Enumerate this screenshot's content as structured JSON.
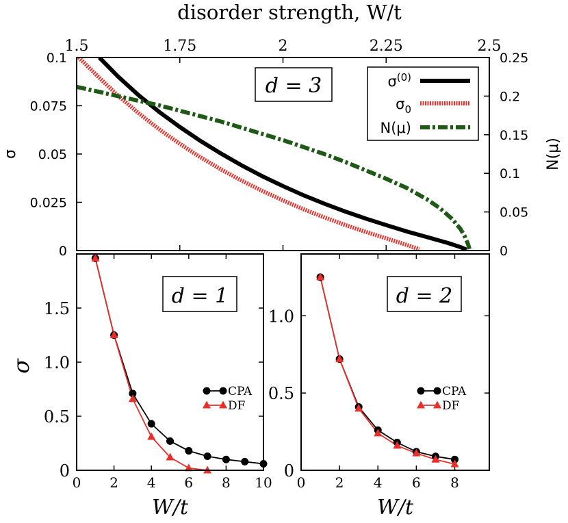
{
  "chart_data": [
    {
      "id": "top",
      "type": "line",
      "title": "",
      "xlabel": "disorder strength, W/t",
      "ylabel": "σ",
      "ylabel_right": "N(μ)",
      "xlim": [
        1.5,
        2.5
      ],
      "ylim": [
        0,
        0.1
      ],
      "ylim_right": [
        0,
        0.25
      ],
      "x_ticks": [
        {
          "v": 1.5,
          "label": "1.5"
        },
        {
          "v": 1.75,
          "label": "1.75"
        },
        {
          "v": 2,
          "label": "2"
        },
        {
          "v": 2.25,
          "label": "2.25"
        },
        {
          "v": 2.5,
          "label": "2.5"
        }
      ],
      "y_ticks": [
        {
          "v": 0,
          "label": "0"
        },
        {
          "v": 0.025,
          "label": "0.025"
        },
        {
          "v": 0.05,
          "label": "0.05"
        },
        {
          "v": 0.075,
          "label": "0.075"
        },
        {
          "v": 0.1,
          "label": "0.1"
        }
      ],
      "y_ticks_right": [
        {
          "v": 0,
          "label": "0"
        },
        {
          "v": 0.05,
          "label": "0.05"
        },
        {
          "v": 0.1,
          "label": "0.1"
        },
        {
          "v": 0.15,
          "label": "0.15"
        },
        {
          "v": 0.2,
          "label": "0.2"
        },
        {
          "v": 0.25,
          "label": "0.25"
        }
      ],
      "annotation": "d = 3",
      "legend_position": "top-right",
      "series": [
        {
          "name": "σ(0)",
          "legend_base": "σ",
          "legend_sup": "(0)",
          "axis": "left",
          "color": "#000000",
          "style": "solid",
          "x": [
            1.555,
            1.6,
            1.65,
            1.7,
            1.75,
            1.8,
            1.85,
            1.9,
            1.95,
            2.0,
            2.05,
            2.1,
            2.15,
            2.2,
            2.25,
            2.3,
            2.35,
            2.4,
            2.43,
            2.445
          ],
          "y": [
            0.1,
            0.0902,
            0.0805,
            0.0718,
            0.064,
            0.0568,
            0.0502,
            0.0441,
            0.0385,
            0.0334,
            0.0286,
            0.0243,
            0.0203,
            0.0166,
            0.0132,
            0.0099,
            0.0069,
            0.0039,
            0.0018,
            0.0005
          ]
        },
        {
          "name": "σ0",
          "legend_base": "σ",
          "legend_sub": "0",
          "axis": "left",
          "color": "#e8302a",
          "style": "dotted",
          "x": [
            1.505,
            1.55,
            1.6,
            1.65,
            1.7,
            1.75,
            1.8,
            1.85,
            1.9,
            1.95,
            2.0,
            2.05,
            2.1,
            2.15,
            2.2,
            2.25,
            2.3,
            2.33
          ],
          "y": [
            0.1,
            0.0905,
            0.0803,
            0.0712,
            0.0628,
            0.0553,
            0.0483,
            0.042,
            0.0362,
            0.0309,
            0.026,
            0.0214,
            0.0172,
            0.0133,
            0.0097,
            0.0063,
            0.0029,
            0.0007
          ]
        },
        {
          "name": "N(μ)",
          "legend_base": "N(μ)",
          "axis": "right",
          "color": "#1e5a16",
          "style": "dashdot",
          "x": [
            1.5,
            1.55,
            1.6,
            1.65,
            1.7,
            1.75,
            1.8,
            1.85,
            1.9,
            1.95,
            2.0,
            2.05,
            2.1,
            2.15,
            2.2,
            2.25,
            2.3,
            2.35,
            2.38,
            2.41,
            2.43,
            2.44,
            2.448,
            2.452
          ],
          "y": [
            0.212,
            0.206,
            0.2,
            0.194,
            0.188,
            0.181,
            0.174,
            0.167,
            0.159,
            0.151,
            0.143,
            0.134,
            0.125,
            0.115,
            0.104,
            0.093,
            0.081,
            0.066,
            0.055,
            0.041,
            0.028,
            0.019,
            0.009,
            0.002
          ]
        }
      ]
    },
    {
      "id": "d1",
      "type": "line",
      "title": "",
      "xlabel": "W/t",
      "ylabel": "σ",
      "xlim": [
        0,
        10
      ],
      "ylim": [
        0,
        2.0
      ],
      "x_ticks": [
        {
          "v": 0,
          "label": "0"
        },
        {
          "v": 2,
          "label": "2"
        },
        {
          "v": 4,
          "label": "4"
        },
        {
          "v": 6,
          "label": "6"
        },
        {
          "v": 8,
          "label": "8"
        },
        {
          "v": 10,
          "label": "10"
        }
      ],
      "y_ticks": [
        {
          "v": 0,
          "label": "0"
        },
        {
          "v": 0.5,
          "label": "0.5"
        },
        {
          "v": 1.0,
          "label": "1.0"
        },
        {
          "v": 1.5,
          "label": "1.5"
        }
      ],
      "annotation": "d = 1",
      "legend_position": "right",
      "series": [
        {
          "name": "CPA",
          "color": "#000000",
          "marker": "circle",
          "x": [
            1,
            2,
            3,
            4,
            5,
            6,
            7,
            8,
            9,
            10
          ],
          "y": [
            1.96,
            1.25,
            0.71,
            0.43,
            0.27,
            0.18,
            0.13,
            0.1,
            0.08,
            0.06
          ]
        },
        {
          "name": "DF",
          "color": "#e8302a",
          "marker": "triangle",
          "x": [
            1,
            2,
            3,
            4,
            5,
            6,
            7
          ],
          "y": [
            1.96,
            1.25,
            0.66,
            0.31,
            0.12,
            0.02,
            0.0
          ]
        }
      ]
    },
    {
      "id": "d2",
      "type": "line",
      "title": "",
      "xlabel": "W/t",
      "ylabel": "",
      "xlim": [
        0,
        9.8
      ],
      "ylim": [
        0,
        1.4
      ],
      "x_ticks": [
        {
          "v": 0,
          "label": "0"
        },
        {
          "v": 2,
          "label": "2"
        },
        {
          "v": 4,
          "label": "4"
        },
        {
          "v": 6,
          "label": "6"
        },
        {
          "v": 8,
          "label": "8"
        }
      ],
      "y_ticks": [
        {
          "v": 0,
          "label": "0"
        },
        {
          "v": 0.5,
          "label": "0.5"
        },
        {
          "v": 1.0,
          "label": "1.0"
        }
      ],
      "annotation": "d = 2",
      "legend_position": "right",
      "series": [
        {
          "name": "CPA",
          "color": "#000000",
          "marker": "circle",
          "x": [
            1,
            2,
            3,
            4,
            5,
            6,
            7,
            8
          ],
          "y": [
            1.25,
            0.72,
            0.41,
            0.26,
            0.18,
            0.12,
            0.09,
            0.07
          ]
        },
        {
          "name": "DF",
          "color": "#e8302a",
          "marker": "triangle",
          "x": [
            1,
            2,
            3,
            4,
            5,
            6,
            7,
            8
          ],
          "y": [
            1.25,
            0.72,
            0.4,
            0.24,
            0.16,
            0.11,
            0.07,
            0.04
          ]
        }
      ]
    }
  ]
}
